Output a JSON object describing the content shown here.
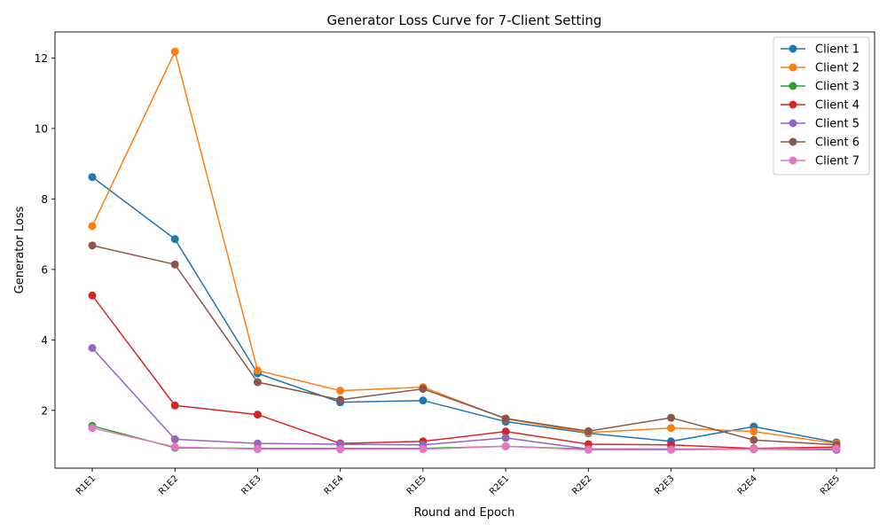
{
  "chart_data": {
    "type": "line",
    "title": "Generator Loss Curve for 7-Client Setting",
    "xlabel": "Round and Epoch",
    "ylabel": "Generator Loss",
    "categories": [
      "R1E1",
      "R1E2",
      "R1E3",
      "R1E4",
      "R1E5",
      "R2E1",
      "R2E2",
      "R2E3",
      "R2E4",
      "R2E5"
    ],
    "ylim": [
      0.36,
      12.74
    ],
    "yticks": [
      2,
      4,
      6,
      8,
      10,
      12
    ],
    "grid": false,
    "legend_position": "top-right",
    "series": [
      {
        "name": "Client 1",
        "color": "#1f77b4",
        "values": [
          8.62,
          6.86,
          3.05,
          2.23,
          2.28,
          1.68,
          1.35,
          1.12,
          1.54,
          1.09
        ]
      },
      {
        "name": "Client 2",
        "color": "#ff7f0e",
        "values": [
          7.23,
          12.18,
          3.13,
          2.56,
          2.66,
          1.76,
          1.37,
          1.5,
          1.4,
          1.06
        ]
      },
      {
        "name": "Client 3",
        "color": "#2ca02c",
        "values": [
          1.56,
          0.94,
          0.92,
          0.92,
          0.92,
          0.98,
          0.9,
          0.9,
          0.9,
          0.92
        ]
      },
      {
        "name": "Client 4",
        "color": "#d62728",
        "values": [
          5.26,
          2.14,
          1.88,
          1.06,
          1.12,
          1.4,
          1.04,
          1.02,
          0.92,
          0.96
        ]
      },
      {
        "name": "Client 5",
        "color": "#9467bd",
        "values": [
          3.77,
          1.18,
          1.06,
          1.04,
          1.02,
          1.22,
          0.9,
          0.9,
          0.9,
          0.88
        ]
      },
      {
        "name": "Client 6",
        "color": "#8c564b",
        "values": [
          6.68,
          6.14,
          2.8,
          2.3,
          2.61,
          1.77,
          1.41,
          1.79,
          1.16,
          1.02
        ]
      },
      {
        "name": "Client 7",
        "color": "#e377c2",
        "values": [
          1.5,
          0.96,
          0.9,
          0.9,
          0.9,
          0.98,
          0.88,
          0.88,
          0.9,
          0.92
        ]
      }
    ]
  }
}
